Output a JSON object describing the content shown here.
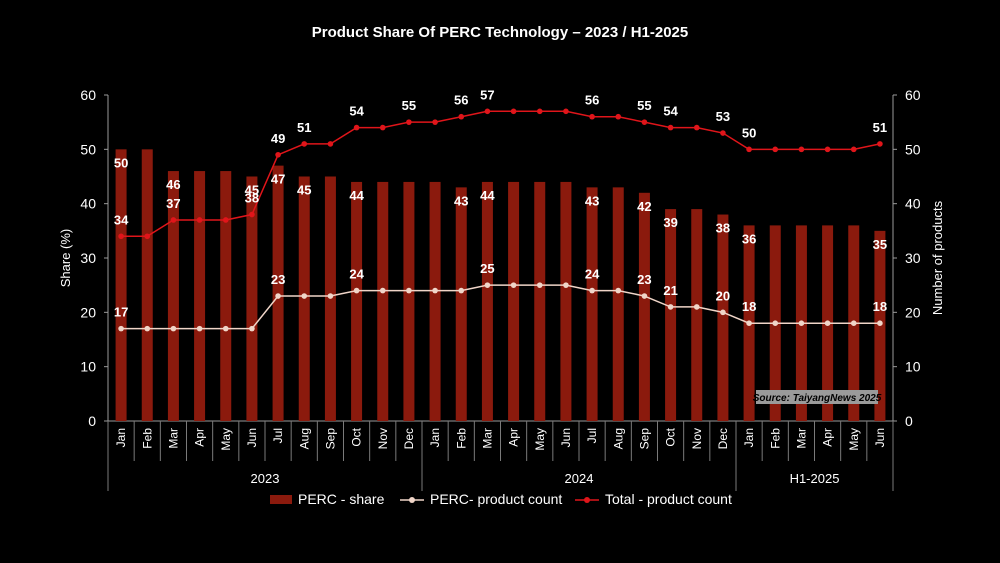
{
  "title": "Product Share Of PERC Technology – 2023 / H1-2025",
  "source_note": "Source: TaiyangNews 2025",
  "chart_data": {
    "type": "bar",
    "title": "Product Share Of PERC Technology – 2023 / H1-2025",
    "categories": [
      "Jan",
      "Feb",
      "Mar",
      "Apr",
      "May",
      "Jun",
      "Jul",
      "Aug",
      "Sep",
      "Oct",
      "Nov",
      "Dec",
      "Jan",
      "Feb",
      "Mar",
      "Apr",
      "May",
      "Jun",
      "Jul",
      "Aug",
      "Sep",
      "Oct",
      "Nov",
      "Dec",
      "Jan",
      "Feb",
      "Mar",
      "Apr",
      "May",
      "Jun"
    ],
    "groups": [
      {
        "label": "2023",
        "count": 12
      },
      {
        "label": "2024",
        "count": 12
      },
      {
        "label": "H1-2025",
        "count": 6
      }
    ],
    "ylabel": "Share (%)",
    "ylabel_right": "Number of products",
    "ylim": [
      0,
      60
    ],
    "ylim_right": [
      0,
      60
    ],
    "yticks": [
      0,
      10,
      20,
      30,
      40,
      50,
      60
    ],
    "legend_position": "bottom",
    "colors": {
      "bar": "#8b1a0d",
      "total_line": "#e0151a",
      "perc_line": "#f0d5c8"
    },
    "series": [
      {
        "name": "PERC - share",
        "type": "bar",
        "axis": "left",
        "values": [
          50,
          50,
          46,
          46,
          46,
          45,
          47,
          45,
          45,
          44,
          44,
          44,
          44,
          43,
          44,
          44,
          44,
          44,
          43,
          43,
          42,
          39,
          39,
          38,
          36,
          36,
          36,
          36,
          36,
          35
        ],
        "labels": [
          50,
          null,
          46,
          null,
          null,
          45,
          47,
          45,
          null,
          44,
          null,
          null,
          null,
          43,
          44,
          null,
          null,
          null,
          43,
          null,
          42,
          39,
          null,
          38,
          36,
          null,
          null,
          null,
          null,
          35
        ]
      },
      {
        "name": "PERC- product count",
        "type": "line",
        "axis": "right",
        "values": [
          17,
          17,
          17,
          17,
          17,
          17,
          23,
          23,
          23,
          24,
          24,
          24,
          24,
          24,
          25,
          25,
          25,
          25,
          24,
          24,
          23,
          21,
          21,
          20,
          18,
          18,
          18,
          18,
          18,
          18
        ],
        "labels": [
          17,
          null,
          null,
          null,
          null,
          null,
          23,
          null,
          null,
          24,
          null,
          null,
          null,
          null,
          25,
          null,
          null,
          null,
          24,
          null,
          23,
          21,
          null,
          20,
          18,
          null,
          null,
          null,
          null,
          18
        ]
      },
      {
        "name": "Total - product count",
        "type": "line",
        "axis": "right",
        "values": [
          34,
          34,
          37,
          37,
          37,
          38,
          49,
          51,
          51,
          54,
          54,
          55,
          55,
          56,
          57,
          57,
          57,
          57,
          56,
          56,
          55,
          54,
          54,
          53,
          50,
          50,
          50,
          50,
          50,
          51
        ],
        "labels": [
          34,
          null,
          37,
          null,
          null,
          38,
          49,
          51,
          null,
          54,
          null,
          55,
          null,
          56,
          57,
          null,
          null,
          null,
          56,
          null,
          55,
          54,
          null,
          53,
          50,
          null,
          null,
          null,
          null,
          51
        ]
      }
    ]
  }
}
